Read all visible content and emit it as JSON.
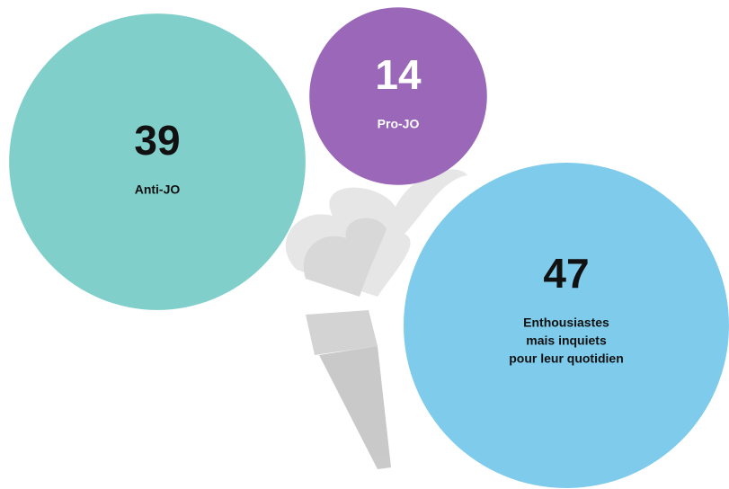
{
  "chart_data": {
    "type": "bubble",
    "labels": [
      [
        "Anti-JO"
      ],
      [
        "Pro-JO"
      ],
      [
        "Enthousiastes",
        "mais inquiets",
        "pour leur quotidien"
      ]
    ],
    "values": [
      39,
      14,
      47
    ],
    "colors": [
      "#80cfcb",
      "#9b67b8",
      "#7ecbeb"
    ],
    "text_colors": [
      "#111111",
      "#ffffff",
      "#111111"
    ]
  }
}
